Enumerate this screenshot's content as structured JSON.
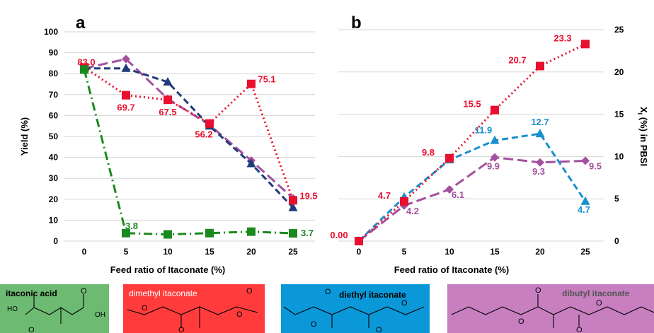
{
  "panels": {
    "a": {
      "label": "a",
      "xlabel": "Feed ratio of Itaconate (%)",
      "ylabel": "Yield (%)"
    },
    "b": {
      "label": "b",
      "xlabel": "Feed ratio of Itaconate (%)",
      "ylabel_main": "X",
      "ylabel_sub": "I",
      "ylabel_rest": " (%) in PBSI"
    }
  },
  "compounds": [
    {
      "name": "itaconic acid",
      "color": "#6dba72",
      "text_color": "#000000",
      "atoms": [
        "O",
        "HO",
        "OH",
        "O"
      ]
    },
    {
      "name": "dimethyl itaconate",
      "color": "#ff3b3b",
      "text_color": "#ffffff",
      "atoms": [
        "O",
        "O",
        "O",
        "O"
      ]
    },
    {
      "name": "diethyl itaconate",
      "color": "#0a98d8",
      "text_color": "#000000",
      "atoms": [
        "O",
        "O",
        "O",
        "O"
      ]
    },
    {
      "name": "dibutyl itaconate",
      "color": "#c87fc0",
      "text_color": "#ffffff",
      "atoms": [
        "O",
        "O",
        "O",
        "O"
      ]
    }
  ],
  "chart_data": [
    {
      "type": "line",
      "panel": "a",
      "xlabel": "Feed ratio of Itaconate (%)",
      "ylabel": "Yield (%)",
      "x": [
        0,
        5,
        10,
        15,
        20,
        25
      ],
      "xticks": [
        "0",
        "5",
        "10",
        "15",
        "20",
        "25"
      ],
      "ylim": [
        0,
        100
      ],
      "yticks": [
        0,
        10,
        20,
        30,
        40,
        50,
        60,
        70,
        80,
        90,
        100
      ],
      "grid": true,
      "series": [
        {
          "key": "butyl",
          "color": "#a3509e",
          "marker": "diamond",
          "dash": "long",
          "values": [
            82.5,
            87,
            68,
            55.5,
            38.5,
            20.5
          ],
          "labels": [],
          "label_color": "#a3509e"
        },
        {
          "key": "ethyl",
          "color": "#1f3b7a",
          "marker": "triangle",
          "dash": "medium",
          "values": [
            82.5,
            82.5,
            76,
            55,
            37,
            16
          ],
          "labels": [],
          "label_color": "#1f3b7a"
        },
        {
          "key": "methyl",
          "color": "#e8102e",
          "marker": "square",
          "dash": "dot",
          "values": [
            83.0,
            69.7,
            67.5,
            56.2,
            75.1,
            19.5
          ],
          "labels": [
            "83.0",
            "69.7",
            "67.5",
            "56.2",
            "75.1",
            "19.5"
          ],
          "label_color": "#e8102e"
        },
        {
          "key": "acid",
          "color": "#1a8a1e",
          "marker": "square",
          "dash": "dashdot",
          "values": [
            82,
            3.8,
            3.2,
            3.8,
            4.5,
            3.7
          ],
          "labels": [
            "",
            "3.8",
            "",
            "",
            "",
            "3.7"
          ],
          "label_color": "#1a8a1e"
        }
      ]
    },
    {
      "type": "line",
      "panel": "b",
      "xlabel": "Feed ratio of Itaconate (%)",
      "ylabel": "XI (%) in PBSI",
      "x": [
        0,
        5,
        10,
        15,
        20,
        25
      ],
      "xticks": [
        "0",
        "5",
        "10",
        "15",
        "20",
        "25"
      ],
      "ylim": [
        0,
        25
      ],
      "yticks": [
        0,
        5,
        10,
        15,
        20,
        25
      ],
      "grid": true,
      "series": [
        {
          "key": "butyl",
          "color": "#a3509e",
          "marker": "diamond",
          "dash": "long",
          "values": [
            0,
            4.2,
            6.1,
            9.9,
            9.3,
            9.5
          ],
          "labels": [
            "",
            "4.2",
            "6.1",
            "9.9",
            "9.3",
            "9.5"
          ],
          "label_color": "#a3509e"
        },
        {
          "key": "ethyl",
          "color": "#1b8fcc",
          "marker": "triangle",
          "dash": "medium",
          "values": [
            0,
            5.2,
            9.6,
            11.9,
            12.7,
            4.7
          ],
          "labels": [
            "",
            "",
            "",
            "11.9",
            "12.7",
            "4.7"
          ],
          "label_color": "#1b8fcc"
        },
        {
          "key": "methyl",
          "color": "#e8102e",
          "marker": "square",
          "dash": "dot",
          "values": [
            0.0,
            4.7,
            9.8,
            15.5,
            20.7,
            23.3
          ],
          "labels": [
            "0.00",
            "4.7",
            "9.8",
            "15.5",
            "20.7",
            "23.3"
          ],
          "label_color": "#e8102e"
        }
      ]
    }
  ]
}
